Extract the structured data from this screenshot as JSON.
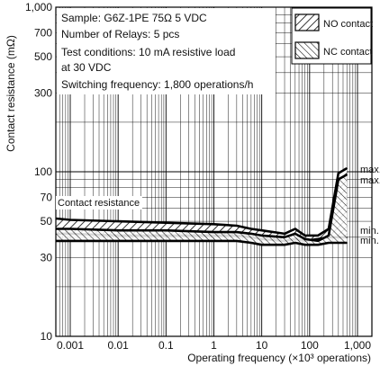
{
  "chart_data": {
    "type": "line",
    "title": "",
    "xlabel": "Operating frequency (×10³ operations)",
    "ylabel": "Contact resistance (mΩ)",
    "x_scale": "log",
    "y_scale": "log",
    "xlim": [
      0.0005,
      2000
    ],
    "ylim": [
      10,
      1000
    ],
    "grid": true,
    "x_ticks": [
      0.001,
      0.01,
      0.1,
      1,
      10,
      100,
      1000
    ],
    "x_tick_labels": [
      "0.001",
      "0.01",
      "0.1",
      "1",
      "10",
      "100",
      "1,000"
    ],
    "y_ticks": [
      10,
      30,
      50,
      70,
      100,
      300,
      500,
      700,
      1000
    ],
    "y_tick_labels": [
      "10",
      "30",
      "50",
      "70",
      "100",
      "300",
      "500",
      "700",
      "1,000"
    ],
    "info_lines": [
      "Sample: G6Z-1PE 75Ω 5 VDC",
      "Number of Relays: 5 pcs",
      "Test conditions: 10 mA resistive load",
      "at 30 VDC",
      "Switching frequency: 1,800 operations/h"
    ],
    "legend_position": "top-right",
    "series": [
      {
        "name": "NO contact",
        "hatch": "forward",
        "band": [
          {
            "x": 0.0005,
            "min": 42,
            "max": 52
          },
          {
            "x": 0.001,
            "min": 42,
            "max": 51
          },
          {
            "x": 0.01,
            "min": 41,
            "max": 50
          },
          {
            "x": 0.1,
            "min": 41,
            "max": 49
          },
          {
            "x": 1,
            "min": 41,
            "max": 48
          },
          {
            "x": 3,
            "min": 41,
            "max": 47
          },
          {
            "x": 6,
            "min": 40,
            "max": 45
          },
          {
            "x": 10,
            "min": 39,
            "max": 44
          },
          {
            "x": 30,
            "min": 38,
            "max": 42
          },
          {
            "x": 50,
            "min": 39,
            "max": 45
          },
          {
            "x": 80,
            "min": 38,
            "max": 41
          },
          {
            "x": 150,
            "min": 39,
            "max": 41
          },
          {
            "x": 250,
            "min": 40,
            "max": 45
          },
          {
            "x": 400,
            "min": 40,
            "max": 98
          },
          {
            "x": 600,
            "min": 40,
            "max": 105
          }
        ]
      },
      {
        "name": "NC contact",
        "hatch": "backward",
        "band": [
          {
            "x": 0.0005,
            "min": 38,
            "max": 45
          },
          {
            "x": 0.001,
            "min": 38,
            "max": 45
          },
          {
            "x": 0.01,
            "min": 38,
            "max": 44
          },
          {
            "x": 0.1,
            "min": 38,
            "max": 44
          },
          {
            "x": 1,
            "min": 38,
            "max": 43
          },
          {
            "x": 3,
            "min": 38,
            "max": 43
          },
          {
            "x": 6,
            "min": 37,
            "max": 42
          },
          {
            "x": 10,
            "min": 36,
            "max": 41
          },
          {
            "x": 30,
            "min": 36,
            "max": 40
          },
          {
            "x": 50,
            "min": 37,
            "max": 42
          },
          {
            "x": 80,
            "min": 36,
            "max": 39
          },
          {
            "x": 150,
            "min": 36,
            "max": 38
          },
          {
            "x": 250,
            "min": 37,
            "max": 41
          },
          {
            "x": 400,
            "min": 37,
            "max": 90
          },
          {
            "x": 600,
            "min": 37,
            "max": 96
          }
        ]
      }
    ],
    "annotations": {
      "band_label": "Contact resistance",
      "max_label": "max.",
      "min_label": "min."
    }
  }
}
